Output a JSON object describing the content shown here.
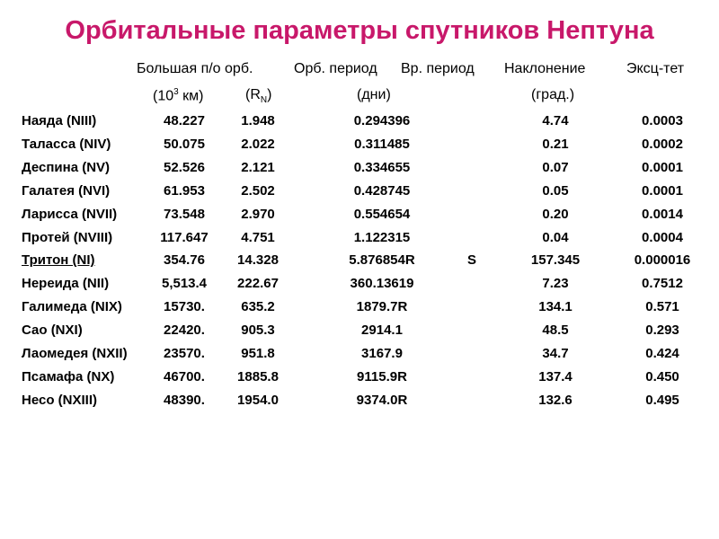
{
  "header": {
    "title": "Орбитальные параметры спутников Нептуна"
  },
  "table": {
    "columns": [
      "Большая п/о орб.",
      "Орб. период",
      "Вр. период",
      "Наклонение",
      "Эксц-тет"
    ],
    "units": [
      [
        "(10",
        "3",
        " км)"
      ],
      [
        "(R",
        "N",
        ")"
      ],
      [
        "(дни)"
      ],
      [
        "(град.)"
      ]
    ],
    "rows": [
      [
        "Наяда (NIII)",
        "48.227",
        "1.948",
        "0.294396",
        "",
        "4.74",
        "0.0003"
      ],
      [
        "Таласса (NIV)",
        "50.075",
        "2.022",
        "0.311485",
        "",
        "0.21",
        "0.0002"
      ],
      [
        "Деспина (NV)",
        "52.526",
        "2.121",
        "0.334655",
        "",
        "0.07",
        "0.0001"
      ],
      [
        "Галатея (NVI)",
        "61.953",
        "2.502",
        "0.428745",
        "",
        "0.05",
        "0.0001"
      ],
      [
        "Ларисса (NVII)",
        "73.548",
        "2.970",
        "0.554654",
        "",
        "0.20",
        "0.0014"
      ],
      [
        "Протей (NVIII)",
        "117.647",
        "4.751",
        "1.122315",
        "",
        "0.04",
        "0.0004"
      ],
      [
        "Тритон (NI)",
        "354.76",
        "14.328",
        "5.876854R",
        "S",
        "157.345",
        "0.000016"
      ],
      [
        "Нереида (NII)",
        "5,513.4",
        "222.67",
        "360.13619",
        "",
        "7.23",
        "0.7512"
      ],
      [
        "Галимеда (NIX)",
        "15730.",
        "635.2",
        "1879.7R",
        "",
        "134.1",
        "0.571"
      ],
      [
        "Сао (NXI)",
        "22420.",
        "905.3",
        "2914.1",
        "",
        "48.5",
        "0.293"
      ],
      [
        "Лаомедея (NXII)",
        "23570.",
        "951.8",
        "3167.9",
        "",
        "34.7",
        "0.424"
      ],
      [
        "Псамафа (NX)",
        "46700.",
        "1885.8",
        "9115.9R",
        "",
        "137.4",
        "0.450"
      ],
      [
        "Несо (NXIII)",
        "48390.",
        "1954.0",
        "9374.0R",
        "",
        "132.6",
        "0.495"
      ]
    ]
  }
}
